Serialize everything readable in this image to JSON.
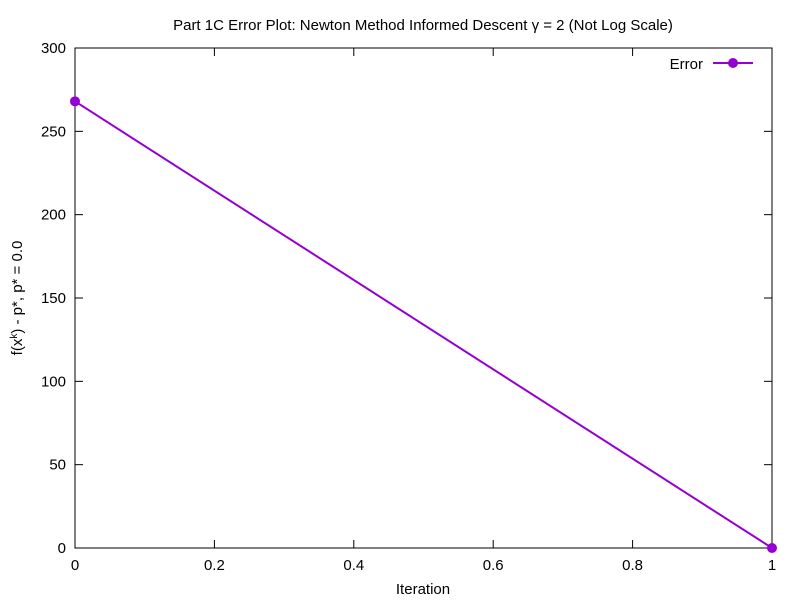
{
  "chart_data": {
    "type": "line",
    "title": "Part 1C Error Plot: Newton Method Informed Descent γ = 2 (Not Log Scale)",
    "xlabel": "Iteration",
    "ylabel_parts": {
      "pre": "f(x",
      "sup": "k",
      "post": ") - p*, p* = 0.0"
    },
    "xlim": [
      0,
      1
    ],
    "ylim": [
      0,
      300
    ],
    "xticks": [
      0,
      0.2,
      0.4,
      0.6,
      0.8,
      1
    ],
    "xtick_labels": [
      "0",
      "0.2",
      "0.4",
      "0.6",
      "0.8",
      "1"
    ],
    "yticks": [
      0,
      50,
      100,
      150,
      200,
      250,
      300
    ],
    "ytick_labels": [
      "0",
      "50",
      "100",
      "150",
      "200",
      "250",
      "300"
    ],
    "grid": false,
    "legend_position": "top-right",
    "series": [
      {
        "name": "Error",
        "color": "#9400D3",
        "marker": "circle",
        "x": [
          0,
          1
        ],
        "y": [
          268,
          0
        ]
      }
    ]
  }
}
